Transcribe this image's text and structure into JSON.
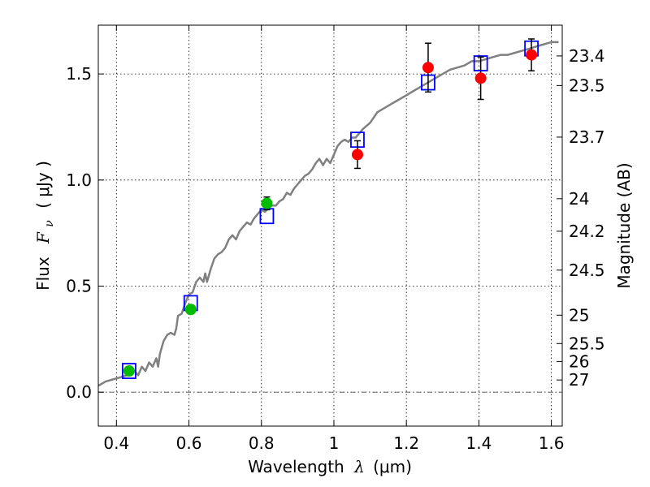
{
  "chart_data": {
    "type": "scatter",
    "xlabel": "Wavelength",
    "xlabel_symbol": "λ",
    "xlabel_unit": "(μm)",
    "ylabel": "Flux",
    "ylabel_symbol": "F",
    "ylabel_subscript": "ν",
    "ylabel_unit": "( μJy )",
    "ylabel_right": "Magnitude (AB)",
    "xlim": [
      0.35,
      1.63
    ],
    "ylim": [
      -0.16,
      1.73
    ],
    "grid": true,
    "x_ticks": [
      {
        "value": 0.4,
        "label": "0.4"
      },
      {
        "value": 0.6,
        "label": "0.6"
      },
      {
        "value": 0.8,
        "label": "0.8"
      },
      {
        "value": 1.0,
        "label": "1"
      },
      {
        "value": 1.2,
        "label": "1.2"
      },
      {
        "value": 1.4,
        "label": "1.4"
      },
      {
        "value": 1.6,
        "label": "1.6"
      }
    ],
    "y_ticks": [
      {
        "value": 0.0,
        "label": "0.0"
      },
      {
        "value": 0.5,
        "label": "0.5"
      },
      {
        "value": 1.0,
        "label": "1.0"
      },
      {
        "value": 1.5,
        "label": "1.5"
      }
    ],
    "right_ticks": [
      {
        "value": 23.4,
        "label": "23.4"
      },
      {
        "value": 23.5,
        "label": "23.5"
      },
      {
        "value": 23.7,
        "label": "23.7"
      },
      {
        "value": 24.0,
        "label": "24"
      },
      {
        "value": 24.2,
        "label": "24.2"
      },
      {
        "value": 24.5,
        "label": "24.5"
      },
      {
        "value": 25.0,
        "label": "25"
      },
      {
        "value": 25.5,
        "label": "25.5"
      },
      {
        "value": 26.0,
        "label": "26"
      },
      {
        "value": 27.0,
        "label": "27"
      }
    ],
    "series": [
      {
        "kind": "line",
        "color": "#808080",
        "points": [
          [
            0.35,
            0.03
          ],
          [
            0.37,
            0.05
          ],
          [
            0.39,
            0.06
          ],
          [
            0.41,
            0.07
          ],
          [
            0.43,
            0.08
          ],
          [
            0.45,
            0.1
          ],
          [
            0.46,
            0.08
          ],
          [
            0.47,
            0.12
          ],
          [
            0.48,
            0.1
          ],
          [
            0.49,
            0.14
          ],
          [
            0.5,
            0.12
          ],
          [
            0.51,
            0.16
          ],
          [
            0.515,
            0.12
          ],
          [
            0.52,
            0.18
          ],
          [
            0.53,
            0.24
          ],
          [
            0.54,
            0.27
          ],
          [
            0.55,
            0.28
          ],
          [
            0.56,
            0.27
          ],
          [
            0.565,
            0.3
          ],
          [
            0.57,
            0.36
          ],
          [
            0.58,
            0.37
          ],
          [
            0.59,
            0.42
          ],
          [
            0.6,
            0.46
          ],
          [
            0.61,
            0.47
          ],
          [
            0.62,
            0.52
          ],
          [
            0.63,
            0.54
          ],
          [
            0.64,
            0.52
          ],
          [
            0.645,
            0.56
          ],
          [
            0.65,
            0.52
          ],
          [
            0.66,
            0.58
          ],
          [
            0.67,
            0.63
          ],
          [
            0.68,
            0.65
          ],
          [
            0.69,
            0.66
          ],
          [
            0.7,
            0.68
          ],
          [
            0.71,
            0.72
          ],
          [
            0.72,
            0.74
          ],
          [
            0.73,
            0.72
          ],
          [
            0.74,
            0.76
          ],
          [
            0.75,
            0.78
          ],
          [
            0.76,
            0.8
          ],
          [
            0.77,
            0.79
          ],
          [
            0.78,
            0.82
          ],
          [
            0.79,
            0.84
          ],
          [
            0.8,
            0.86
          ],
          [
            0.81,
            0.85
          ],
          [
            0.82,
            0.87
          ],
          [
            0.83,
            0.88
          ],
          [
            0.84,
            0.88
          ],
          [
            0.85,
            0.9
          ],
          [
            0.86,
            0.91
          ],
          [
            0.87,
            0.94
          ],
          [
            0.88,
            0.93
          ],
          [
            0.89,
            0.96
          ],
          [
            0.9,
            0.98
          ],
          [
            0.91,
            1.0
          ],
          [
            0.92,
            1.02
          ],
          [
            0.93,
            1.03
          ],
          [
            0.94,
            1.05
          ],
          [
            0.95,
            1.08
          ],
          [
            0.96,
            1.1
          ],
          [
            0.97,
            1.07
          ],
          [
            0.98,
            1.1
          ],
          [
            0.99,
            1.08
          ],
          [
            1.0,
            1.12
          ],
          [
            1.01,
            1.16
          ],
          [
            1.02,
            1.18
          ],
          [
            1.03,
            1.19
          ],
          [
            1.04,
            1.18
          ],
          [
            1.05,
            1.2
          ],
          [
            1.06,
            1.2
          ],
          [
            1.08,
            1.24
          ],
          [
            1.1,
            1.27
          ],
          [
            1.12,
            1.32
          ],
          [
            1.14,
            1.34
          ],
          [
            1.16,
            1.36
          ],
          [
            1.18,
            1.38
          ],
          [
            1.2,
            1.4
          ],
          [
            1.22,
            1.42
          ],
          [
            1.24,
            1.44
          ],
          [
            1.26,
            1.46
          ],
          [
            1.28,
            1.48
          ],
          [
            1.3,
            1.5
          ],
          [
            1.32,
            1.52
          ],
          [
            1.34,
            1.53
          ],
          [
            1.36,
            1.54
          ],
          [
            1.38,
            1.56
          ],
          [
            1.4,
            1.56
          ],
          [
            1.42,
            1.57
          ],
          [
            1.44,
            1.58
          ],
          [
            1.46,
            1.59
          ],
          [
            1.48,
            1.59
          ],
          [
            1.5,
            1.6
          ],
          [
            1.52,
            1.61
          ],
          [
            1.54,
            1.62
          ],
          [
            1.56,
            1.63
          ],
          [
            1.58,
            1.64
          ],
          [
            1.6,
            1.65
          ],
          [
            1.62,
            1.65
          ]
        ]
      },
      {
        "kind": "squares",
        "color": "#0000ff",
        "points": [
          [
            0.435,
            0.1
          ],
          [
            0.605,
            0.42
          ],
          [
            0.815,
            0.83
          ],
          [
            1.065,
            1.19
          ],
          [
            1.26,
            1.46
          ],
          [
            1.405,
            1.55
          ],
          [
            1.545,
            1.62
          ]
        ]
      },
      {
        "kind": "circles",
        "color": "#00bb00",
        "points": [
          {
            "x": 0.435,
            "y": 0.1,
            "err": 0.02
          },
          {
            "x": 0.605,
            "y": 0.39,
            "err": 0.02
          },
          {
            "x": 0.815,
            "y": 0.89,
            "err": 0.03
          }
        ]
      },
      {
        "kind": "circles",
        "color": "#ff0000",
        "points": [
          {
            "x": 1.065,
            "y": 1.12,
            "err": 0.065
          },
          {
            "x": 1.26,
            "y": 1.53,
            "err": 0.115
          },
          {
            "x": 1.405,
            "y": 1.48,
            "err": 0.1
          },
          {
            "x": 1.545,
            "y": 1.59,
            "err": 0.075
          }
        ]
      }
    ]
  }
}
